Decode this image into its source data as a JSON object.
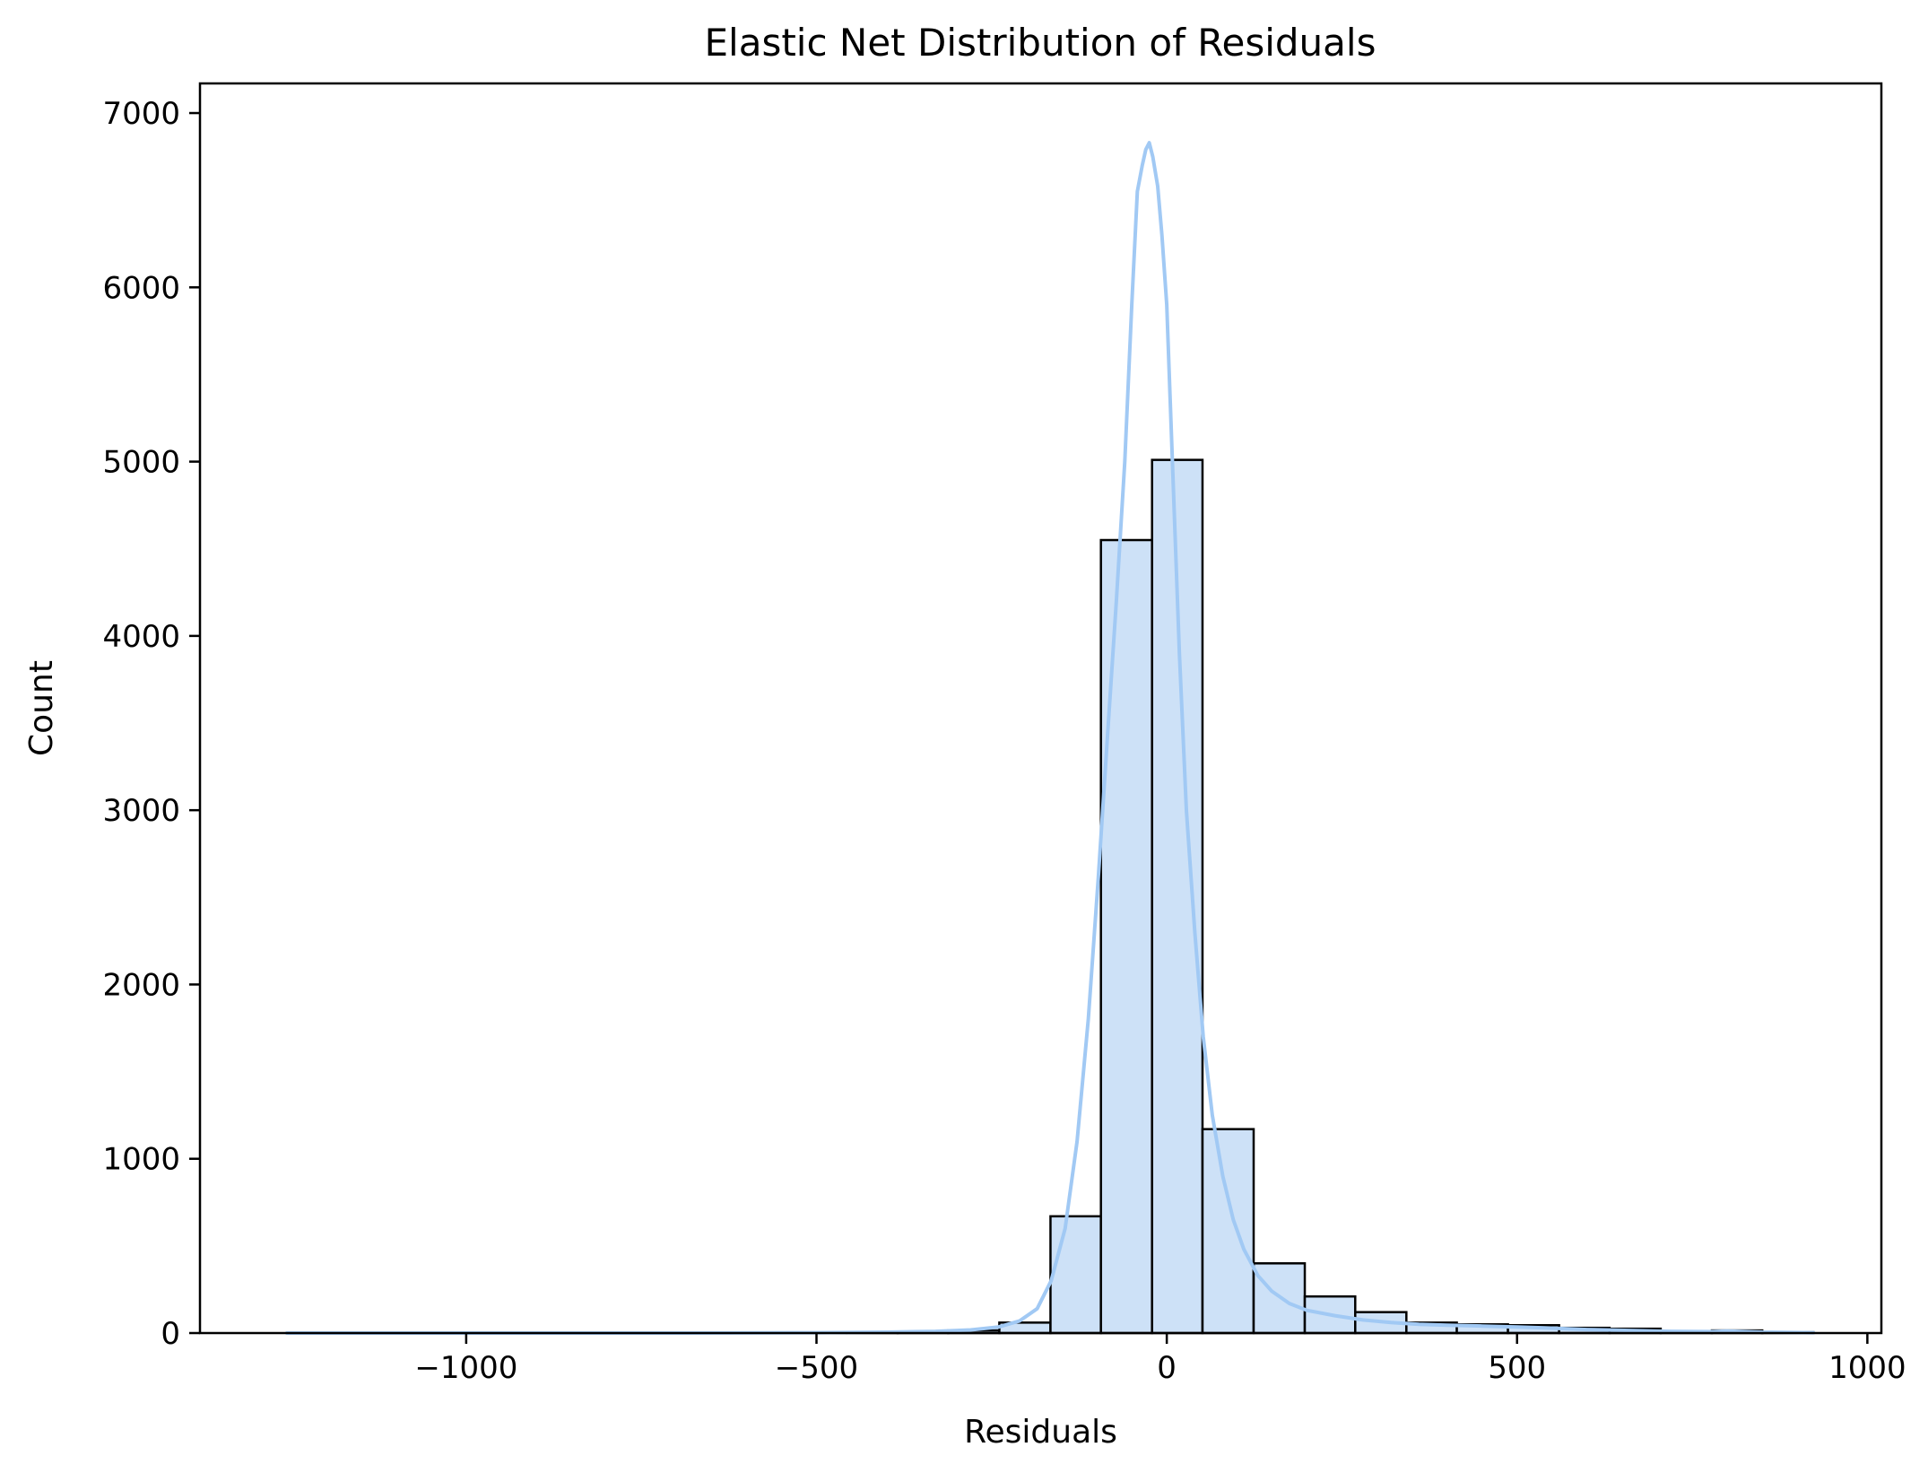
{
  "chart_data": {
    "type": "bar",
    "title": "Elastic Net Distribution of Residuals",
    "xlabel": "Residuals",
    "ylabel": "Count",
    "xlim": [
      -1380,
      1020
    ],
    "ylim": [
      0,
      7170
    ],
    "x_ticks": [
      -1000,
      -500,
      0,
      500,
      1000
    ],
    "x_tick_labels": [
      "−1000",
      "−500",
      "0",
      "500",
      "1000"
    ],
    "y_ticks": [
      0,
      1000,
      2000,
      3000,
      4000,
      5000,
      6000,
      7000
    ],
    "y_tick_labels": [
      "0",
      "1000",
      "2000",
      "3000",
      "4000",
      "5000",
      "6000",
      "7000"
    ],
    "grid": false,
    "legend": "none",
    "bars": [
      {
        "x0": -1256,
        "x1": -1183,
        "count": 1
      },
      {
        "x0": -1183,
        "x1": -1110,
        "count": 0
      },
      {
        "x0": -1110,
        "x1": -1038,
        "count": 0
      },
      {
        "x0": -1038,
        "x1": -965,
        "count": 0
      },
      {
        "x0": -965,
        "x1": -893,
        "count": 0
      },
      {
        "x0": -893,
        "x1": -820,
        "count": 0
      },
      {
        "x0": -820,
        "x1": -747,
        "count": 0
      },
      {
        "x0": -747,
        "x1": -675,
        "count": 0
      },
      {
        "x0": -675,
        "x1": -602,
        "count": 0
      },
      {
        "x0": -602,
        "x1": -529,
        "count": 0
      },
      {
        "x0": -529,
        "x1": -457,
        "count": 1
      },
      {
        "x0": -457,
        "x1": -384,
        "count": 2
      },
      {
        "x0": -384,
        "x1": -312,
        "count": 4
      },
      {
        "x0": -312,
        "x1": -239,
        "count": 15
      },
      {
        "x0": -239,
        "x1": -166,
        "count": 60
      },
      {
        "x0": -166,
        "x1": -94,
        "count": 670
      },
      {
        "x0": -94,
        "x1": -21,
        "count": 4550
      },
      {
        "x0": -21,
        "x1": 51,
        "count": 5010
      },
      {
        "x0": 51,
        "x1": 124,
        "count": 1170
      },
      {
        "x0": 124,
        "x1": 197,
        "count": 400
      },
      {
        "x0": 197,
        "x1": 269,
        "count": 210
      },
      {
        "x0": 269,
        "x1": 342,
        "count": 120
      },
      {
        "x0": 342,
        "x1": 414,
        "count": 60
      },
      {
        "x0": 414,
        "x1": 487,
        "count": 50
      },
      {
        "x0": 487,
        "x1": 560,
        "count": 45
      },
      {
        "x0": 560,
        "x1": 632,
        "count": 30
      },
      {
        "x0": 632,
        "x1": 705,
        "count": 25
      },
      {
        "x0": 705,
        "x1": 778,
        "count": 10
      },
      {
        "x0": 778,
        "x1": 850,
        "count": 15
      },
      {
        "x0": 850,
        "x1": 923,
        "count": 5
      }
    ],
    "kde": {
      "x": [
        -1256,
        -1000,
        -700,
        -500,
        -400,
        -330,
        -280,
        -240,
        -210,
        -185,
        -165,
        -145,
        -128,
        -112,
        -98,
        -85,
        -72,
        -60,
        -50,
        -42,
        -35,
        -30,
        -25,
        -20,
        -13,
        -7,
        0,
        8,
        18,
        28,
        40,
        52,
        65,
        80,
        95,
        110,
        130,
        150,
        175,
        200,
        240,
        280,
        320,
        360,
        400,
        450,
        500,
        540,
        600,
        660,
        720,
        780,
        800,
        850,
        923
      ],
      "y": [
        0,
        0,
        0,
        2,
        5,
        10,
        18,
        35,
        70,
        140,
        300,
        600,
        1100,
        1800,
        2600,
        3400,
        4200,
        5000,
        5900,
        6550,
        6700,
        6790,
        6830,
        6750,
        6580,
        6300,
        5900,
        5000,
        3900,
        3000,
        2300,
        1700,
        1250,
        900,
        650,
        480,
        330,
        240,
        170,
        130,
        100,
        75,
        60,
        50,
        45,
        40,
        35,
        30,
        20,
        15,
        10,
        8,
        12,
        5,
        2
      ],
      "color": "#a1c9f4"
    },
    "bar_fill": "#cde1f7",
    "bar_edge": "#000000",
    "line_color": "#a1c9f4"
  }
}
